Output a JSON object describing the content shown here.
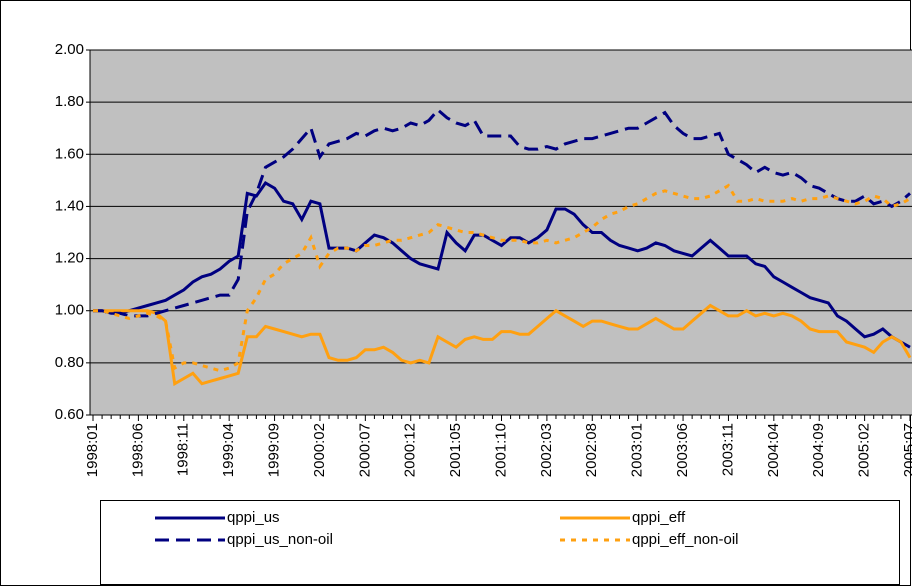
{
  "chart_data": {
    "type": "line",
    "categories": [
      "1998:01",
      null,
      null,
      null,
      null,
      "1998:06",
      null,
      null,
      null,
      null,
      "1998:11",
      null,
      null,
      null,
      null,
      "1999:04",
      null,
      null,
      null,
      null,
      "1999:09",
      null,
      null,
      null,
      null,
      "2000:02",
      null,
      null,
      null,
      null,
      "2000:07",
      null,
      null,
      null,
      null,
      "2000:12",
      null,
      null,
      null,
      null,
      "2001:05",
      null,
      null,
      null,
      null,
      "2001:10",
      null,
      null,
      null,
      null,
      "2002:03",
      null,
      null,
      null,
      null,
      "2002:08",
      null,
      null,
      null,
      null,
      "2003:01",
      null,
      null,
      null,
      null,
      "2003:06",
      null,
      null,
      null,
      null,
      "2003:11",
      null,
      null,
      null,
      null,
      "2004:04",
      null,
      null,
      null,
      null,
      "2004:09",
      null,
      null,
      null,
      null,
      "2005:02",
      null,
      null,
      null,
      null,
      "2005:07"
    ],
    "series": [
      {
        "name": "qppi_us",
        "color": "#000080",
        "style": "solid",
        "values": [
          1.0,
          1.0,
          0.99,
          0.99,
          1.0,
          1.01,
          1.02,
          1.03,
          1.04,
          1.06,
          1.08,
          1.11,
          1.13,
          1.14,
          1.16,
          1.19,
          1.21,
          1.45,
          1.44,
          1.49,
          1.47,
          1.42,
          1.41,
          1.35,
          1.42,
          1.41,
          1.24,
          1.24,
          1.24,
          1.23,
          1.26,
          1.29,
          1.28,
          1.26,
          1.23,
          1.2,
          1.18,
          1.17,
          1.16,
          1.3,
          1.26,
          1.23,
          1.29,
          1.29,
          1.27,
          1.25,
          1.28,
          1.28,
          1.26,
          1.28,
          1.31,
          1.39,
          1.39,
          1.37,
          1.33,
          1.3,
          1.3,
          1.27,
          1.25,
          1.24,
          1.23,
          1.24,
          1.26,
          1.25,
          1.23,
          1.22,
          1.21,
          1.24,
          1.27,
          1.24,
          1.21,
          1.21,
          1.21,
          1.18,
          1.17,
          1.13,
          1.11,
          1.09,
          1.07,
          1.05,
          1.04,
          1.03,
          0.98,
          0.96,
          0.93,
          0.9,
          0.91,
          0.93,
          0.9,
          0.88,
          0.86
        ]
      },
      {
        "name": "qppi_eff",
        "color": "#ffa010",
        "style": "solid",
        "values": [
          1.0,
          1.0,
          1.0,
          1.0,
          1.0,
          1.0,
          1.0,
          0.99,
          0.96,
          0.72,
          0.74,
          0.76,
          0.72,
          0.73,
          0.74,
          0.75,
          0.76,
          0.9,
          0.9,
          0.94,
          0.93,
          0.92,
          0.91,
          0.9,
          0.91,
          0.91,
          0.82,
          0.81,
          0.81,
          0.82,
          0.85,
          0.85,
          0.86,
          0.84,
          0.81,
          0.8,
          0.81,
          0.8,
          0.9,
          0.88,
          0.86,
          0.89,
          0.9,
          0.89,
          0.89,
          0.92,
          0.92,
          0.91,
          0.91,
          0.94,
          0.97,
          1.0,
          0.98,
          0.96,
          0.94,
          0.96,
          0.96,
          0.95,
          0.94,
          0.93,
          0.93,
          0.95,
          0.97,
          0.95,
          0.93,
          0.93,
          0.96,
          0.99,
          1.02,
          1.0,
          0.98,
          0.98,
          1.0,
          0.98,
          0.99,
          0.98,
          0.99,
          0.98,
          0.96,
          0.93,
          0.92,
          0.92,
          0.92,
          0.88,
          0.87,
          0.86,
          0.84,
          0.88,
          0.9,
          0.88,
          0.82
        ]
      },
      {
        "name": "qppi_us_non-oil",
        "color": "#000080",
        "style": "dashed",
        "values": [
          1.0,
          1.0,
          0.99,
          0.99,
          0.98,
          0.98,
          0.98,
          0.99,
          1.0,
          1.01,
          1.02,
          1.03,
          1.04,
          1.05,
          1.06,
          1.06,
          1.12,
          1.38,
          1.45,
          1.55,
          1.57,
          1.59,
          1.62,
          1.66,
          1.7,
          1.59,
          1.64,
          1.65,
          1.66,
          1.68,
          1.67,
          1.69,
          1.7,
          1.69,
          1.7,
          1.72,
          1.71,
          1.73,
          1.77,
          1.74,
          1.72,
          1.71,
          1.73,
          1.67,
          1.67,
          1.67,
          1.67,
          1.63,
          1.62,
          1.62,
          1.63,
          1.62,
          1.64,
          1.65,
          1.66,
          1.66,
          1.67,
          1.68,
          1.69,
          1.7,
          1.7,
          1.72,
          1.74,
          1.76,
          1.71,
          1.68,
          1.66,
          1.66,
          1.67,
          1.68,
          1.6,
          1.58,
          1.56,
          1.53,
          1.55,
          1.53,
          1.52,
          1.53,
          1.51,
          1.48,
          1.47,
          1.45,
          1.43,
          1.42,
          1.42,
          1.44,
          1.41,
          1.42,
          1.4,
          1.42,
          1.45
        ]
      },
      {
        "name": "qppi_eff_non-oil",
        "color": "#ffa010",
        "style": "dotted",
        "values": [
          1.0,
          1.0,
          0.99,
          0.98,
          0.97,
          0.98,
          0.99,
          0.98,
          0.96,
          0.78,
          0.8,
          0.8,
          0.79,
          0.78,
          0.77,
          0.78,
          0.8,
          1.0,
          1.05,
          1.12,
          1.14,
          1.18,
          1.2,
          1.22,
          1.28,
          1.17,
          1.22,
          1.24,
          1.24,
          1.23,
          1.25,
          1.25,
          1.26,
          1.27,
          1.27,
          1.28,
          1.29,
          1.3,
          1.33,
          1.32,
          1.31,
          1.3,
          1.3,
          1.29,
          1.28,
          1.27,
          1.27,
          1.27,
          1.26,
          1.26,
          1.27,
          1.26,
          1.27,
          1.28,
          1.3,
          1.32,
          1.35,
          1.37,
          1.38,
          1.4,
          1.41,
          1.43,
          1.45,
          1.46,
          1.45,
          1.44,
          1.43,
          1.43,
          1.44,
          1.46,
          1.48,
          1.42,
          1.42,
          1.43,
          1.42,
          1.42,
          1.42,
          1.43,
          1.42,
          1.43,
          1.43,
          1.44,
          1.43,
          1.42,
          1.41,
          1.42,
          1.44,
          1.43,
          1.4,
          1.41,
          1.43
        ]
      }
    ],
    "ylim": [
      0.6,
      2.0
    ],
    "yticks": [
      {
        "value": 0.6,
        "label": "0.60"
      },
      {
        "value": 0.8,
        "label": "0.80"
      },
      {
        "value": 1.0,
        "label": "1.00"
      },
      {
        "value": 1.2,
        "label": "1.20"
      },
      {
        "value": 1.4,
        "label": "1.40"
      },
      {
        "value": 1.6,
        "label": "1.60"
      },
      {
        "value": 1.8,
        "label": "1.80"
      },
      {
        "value": 2.0,
        "label": "2.00"
      }
    ],
    "grid": true,
    "legend": "bottom"
  }
}
